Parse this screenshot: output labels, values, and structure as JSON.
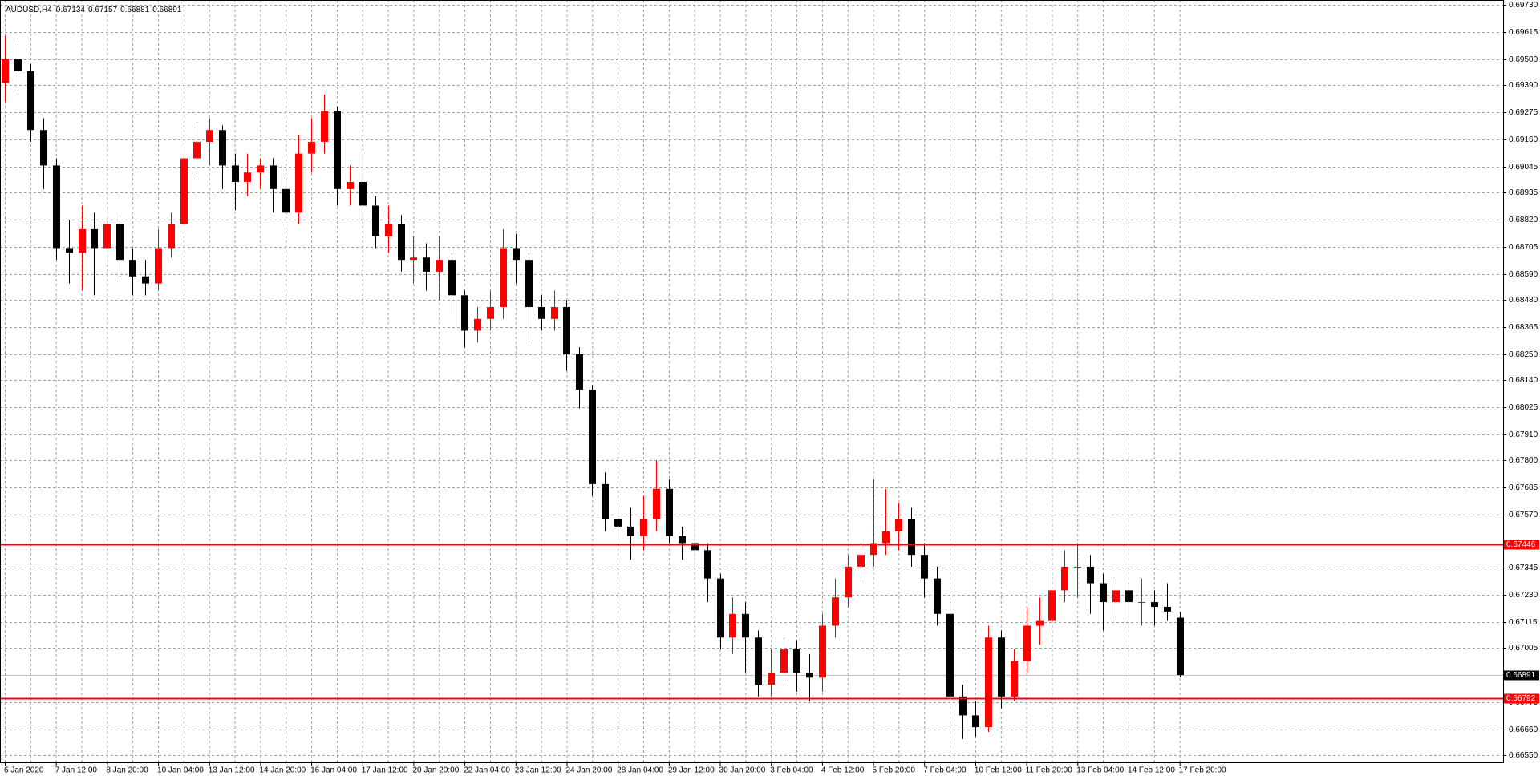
{
  "chart_data": {
    "type": "candlestick",
    "title": "AUDUSD,H4",
    "up_color": "#ff0000",
    "down_color": "#000000",
    "grid": true,
    "ylim": [
      0.66521,
      0.69751
    ],
    "yticks": [
      {
        "value": 0.6973,
        "label": "0.69730"
      },
      0.69615,
      {
        "value": 0.695,
        "label": "0.69500"
      },
      {
        "value": 0.6939,
        "label": "0.69390"
      },
      0.69275,
      {
        "value": 0.6916,
        "label": "0.69160"
      },
      0.69045,
      0.68935,
      {
        "value": 0.6882,
        "label": "0.68820"
      },
      0.68705,
      {
        "value": 0.6859,
        "label": "0.68590"
      },
      {
        "value": 0.6848,
        "label": "0.68480"
      },
      0.68365,
      {
        "value": 0.6825,
        "label": "0.68250"
      },
      {
        "value": 0.6814,
        "label": "0.68140"
      },
      0.68025,
      {
        "value": 0.6791,
        "label": "0.67910"
      },
      {
        "value": 0.678,
        "label": "0.67800"
      },
      0.67685,
      {
        "value": 0.6757,
        "label": "0.67570"
      },
      0.67345,
      {
        "value": 0.6723,
        "label": "0.67230"
      },
      0.67115,
      0.67005,
      0.66775,
      {
        "value": 0.6666,
        "label": "0.66660"
      },
      {
        "value": 0.6655,
        "label": "0.66550"
      }
    ],
    "levels": [
      {
        "value": 0.67446,
        "color": "#ff0000"
      },
      {
        "value": 0.66792,
        "color": "#ff0000"
      }
    ],
    "current_price": 0.66891,
    "categories": [
      "6 Jan 2020",
      null,
      null,
      null,
      "7 Jan 12:00",
      null,
      null,
      null,
      "8 Jan 20:00",
      null,
      null,
      null,
      "10 Jan 04:00",
      null,
      null,
      null,
      "13 Jan 12:00",
      null,
      null,
      null,
      "14 Jan 20:00",
      null,
      null,
      null,
      "16 Jan 04:00",
      null,
      null,
      null,
      "17 Jan 12:00",
      null,
      null,
      null,
      "20 Jan 20:00",
      null,
      null,
      null,
      "22 Jan 04:00",
      null,
      null,
      null,
      "23 Jan 12:00",
      null,
      null,
      null,
      "24 Jan 20:00",
      null,
      null,
      null,
      "28 Jan 04:00",
      null,
      null,
      null,
      "29 Jan 12:00",
      null,
      null,
      null,
      "30 Jan 20:00",
      null,
      null,
      null,
      "3 Feb 04:00",
      null,
      null,
      null,
      "4 Feb 12:00",
      null,
      null,
      null,
      "5 Feb 20:00",
      null,
      null,
      null,
      "7 Feb 04:00",
      null,
      null,
      null,
      "10 Feb 12:00",
      null,
      null,
      null,
      "11 Feb 20:00",
      null,
      null,
      null,
      "13 Feb 04:00",
      null,
      null,
      null,
      "14 Feb 12:00",
      null,
      null,
      null,
      "17 Feb 20:00"
    ],
    "open": [
      0.694,
      0.695,
      0.6945,
      0.692,
      0.6905,
      0.687,
      0.6868,
      0.6878,
      0.687,
      0.688,
      0.6865,
      0.6858,
      0.6855,
      0.687,
      0.688,
      0.6908,
      0.6915,
      0.692,
      0.6905,
      0.6898,
      0.6902,
      0.6905,
      0.6895,
      0.6885,
      0.691,
      0.6915,
      0.6928,
      0.6895,
      0.6898,
      0.6888,
      0.6875,
      0.688,
      0.6865,
      0.6866,
      0.686,
      0.6865,
      0.685,
      0.6835,
      0.684,
      0.6845,
      0.687,
      0.6865,
      0.6845,
      0.684,
      0.6845,
      0.6825,
      0.681,
      0.677,
      0.6755,
      0.6752,
      0.6748,
      0.6755,
      0.6768,
      0.6748,
      0.6745,
      0.6742,
      0.673,
      0.6705,
      0.6715,
      0.6705,
      0.6685,
      0.669,
      0.67,
      0.669,
      0.6688,
      0.671,
      0.6722,
      0.6735,
      0.674,
      0.6745,
      0.675,
      0.6755,
      0.674,
      0.673,
      0.6715,
      0.668,
      0.6672,
      0.6667,
      0.6705,
      0.668,
      0.6695,
      0.671,
      0.6712,
      0.6725,
      0.6735,
      0.6735,
      0.6728,
      0.672,
      0.6725,
      0.672,
      0.672,
      0.6718,
      0.67134
    ],
    "high": [
      0.696,
      0.6958,
      0.6948,
      0.6925,
      0.6908,
      0.6882,
      0.6888,
      0.6885,
      0.6888,
      0.6884,
      0.687,
      0.6865,
      0.6878,
      0.6885,
      0.6915,
      0.6922,
      0.6925,
      0.6922,
      0.691,
      0.691,
      0.6908,
      0.6908,
      0.69,
      0.6918,
      0.6925,
      0.6935,
      0.693,
      0.6905,
      0.6912,
      0.6892,
      0.6888,
      0.6884,
      0.6875,
      0.6872,
      0.6875,
      0.6868,
      0.6852,
      0.6845,
      0.6852,
      0.6878,
      0.6876,
      0.6868,
      0.685,
      0.6852,
      0.6848,
      0.6828,
      0.6812,
      0.6775,
      0.6762,
      0.676,
      0.6765,
      0.678,
      0.6772,
      0.6752,
      0.6755,
      0.6745,
      0.6732,
      0.6722,
      0.672,
      0.6708,
      0.67,
      0.6705,
      0.6704,
      0.6698,
      0.6715,
      0.673,
      0.674,
      0.6745,
      0.6772,
      0.6768,
      0.6762,
      0.676,
      0.6745,
      0.6735,
      0.672,
      0.6685,
      0.6678,
      0.671,
      0.6708,
      0.67,
      0.6718,
      0.6722,
      0.6738,
      0.6742,
      0.6745,
      0.674,
      0.6732,
      0.673,
      0.6728,
      0.673,
      0.6725,
      0.6728,
      0.67157
    ],
    "low": [
      0.6932,
      0.6935,
      0.6915,
      0.6895,
      0.6865,
      0.6855,
      0.6852,
      0.685,
      0.6862,
      0.6858,
      0.685,
      0.685,
      0.6852,
      0.6866,
      0.6876,
      0.69,
      0.6905,
      0.6895,
      0.6886,
      0.6892,
      0.6895,
      0.6885,
      0.6878,
      0.688,
      0.6902,
      0.691,
      0.6888,
      0.6888,
      0.6882,
      0.687,
      0.6868,
      0.686,
      0.6855,
      0.6852,
      0.6848,
      0.6842,
      0.6828,
      0.683,
      0.6835,
      0.684,
      0.6855,
      0.683,
      0.6835,
      0.6835,
      0.6818,
      0.6802,
      0.6765,
      0.675,
      0.6745,
      0.6738,
      0.6742,
      0.675,
      0.6745,
      0.6738,
      0.6735,
      0.672,
      0.67,
      0.6698,
      0.669,
      0.668,
      0.668,
      0.6685,
      0.6682,
      0.6678,
      0.6682,
      0.6705,
      0.6718,
      0.6728,
      0.6735,
      0.674,
      0.6742,
      0.6735,
      0.6722,
      0.671,
      0.6675,
      0.6662,
      0.6663,
      0.6665,
      0.6675,
      0.6678,
      0.669,
      0.6702,
      0.6708,
      0.672,
      0.6722,
      0.6715,
      0.6708,
      0.6712,
      0.6712,
      0.671,
      0.671,
      0.6712,
      0.66881
    ],
    "close": [
      0.695,
      0.6945,
      0.692,
      0.6905,
      0.687,
      0.6868,
      0.6878,
      0.687,
      0.688,
      0.6865,
      0.6858,
      0.6855,
      0.687,
      0.688,
      0.6908,
      0.6915,
      0.692,
      0.6905,
      0.6898,
      0.6902,
      0.6905,
      0.6895,
      0.6885,
      0.691,
      0.6915,
      0.6928,
      0.6895,
      0.6898,
      0.6888,
      0.6875,
      0.688,
      0.6865,
      0.6866,
      0.686,
      0.6865,
      0.685,
      0.6835,
      0.684,
      0.6845,
      0.687,
      0.6865,
      0.6845,
      0.684,
      0.6845,
      0.6825,
      0.681,
      0.677,
      0.6755,
      0.6752,
      0.6748,
      0.6755,
      0.6768,
      0.6748,
      0.6745,
      0.6742,
      0.673,
      0.6705,
      0.6715,
      0.6705,
      0.6685,
      0.669,
      0.67,
      0.669,
      0.6688,
      0.671,
      0.6722,
      0.6735,
      0.674,
      0.6745,
      0.675,
      0.6755,
      0.674,
      0.673,
      0.6715,
      0.668,
      0.6672,
      0.6667,
      0.6705,
      0.668,
      0.6695,
      0.671,
      0.6712,
      0.6725,
      0.6735,
      0.6735,
      0.6728,
      0.672,
      0.6725,
      0.672,
      0.672,
      0.6718,
      0.6716,
      0.66891
    ]
  }
}
